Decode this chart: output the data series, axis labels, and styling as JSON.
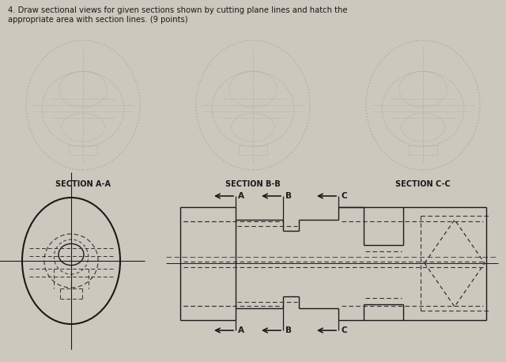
{
  "bg_color": "#cdc8be",
  "title_text": "4. Draw sectional views for given sections shown by cutting plane lines and hatch the\nappropriate area with section lines. (9 points)",
  "section_labels": [
    "SECTION A-A",
    "SECTION B-B",
    "SECTION C-C"
  ],
  "line_color": "#1a1a1a",
  "dashed_color": "#333333",
  "ghost_color": "#b0a898",
  "center_color": "#1a1a1a"
}
